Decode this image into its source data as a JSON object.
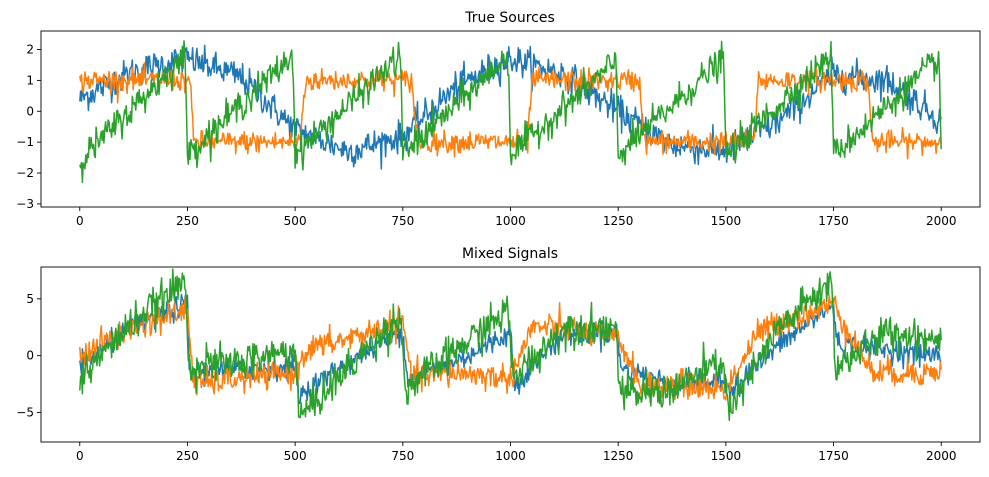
{
  "chart_data": [
    {
      "type": "line",
      "title": "True Sources",
      "xlabel": "",
      "ylabel": "",
      "xlim": [
        -90,
        2090
      ],
      "ylim": [
        -3.1,
        2.6
      ],
      "xticks": [
        0,
        250,
        500,
        750,
        1000,
        1250,
        1500,
        1750,
        2000
      ],
      "yticks": [
        -3,
        -2,
        -1,
        0,
        1,
        2
      ],
      "grid": false,
      "series": [
        {
          "color": "#1f77b4",
          "shape": "sine",
          "x": [
            0,
            125,
            250,
            375,
            500,
            625,
            750,
            875,
            1000,
            1125,
            1250,
            1375,
            1500,
            1625,
            1750,
            1875,
            2000
          ],
          "y": [
            0.4,
            1.3,
            1.7,
            1.1,
            -0.6,
            -1.3,
            -0.8,
            0.8,
            1.7,
            1.2,
            0.0,
            -1.1,
            -1.3,
            -0.3,
            1.2,
            1.0,
            -0.3
          ],
          "noise": 0.25
        },
        {
          "color": "#ff7f0e",
          "shape": "square",
          "x": [
            0,
            10,
            255,
            265,
            510,
            525,
            770,
            785,
            1040,
            1050,
            1300,
            1310,
            1565,
            1575,
            1830,
            1840,
            2000
          ],
          "y": [
            0.9,
            1.0,
            1.0,
            -1.0,
            -1.0,
            1.0,
            1.0,
            -1.0,
            -1.0,
            1.0,
            1.0,
            -1.0,
            -1.0,
            1.0,
            1.0,
            -1.0,
            -1.0
          ],
          "noise": 0.18
        },
        {
          "color": "#2ca02c",
          "shape": "sawtooth",
          "x": [
            0,
            245,
            250,
            495,
            500,
            745,
            750,
            995,
            1000,
            1245,
            1250,
            1495,
            1500,
            1745,
            1750,
            1995,
            2000
          ],
          "y": [
            -1.6,
            1.8,
            -1.4,
            1.8,
            -1.4,
            1.8,
            -1.4,
            1.8,
            -1.4,
            1.6,
            -1.4,
            1.7,
            -1.4,
            1.8,
            -1.4,
            1.7,
            -1.4
          ],
          "noise": 0.25
        }
      ]
    },
    {
      "type": "line",
      "title": "Mixed Signals",
      "xlabel": "",
      "ylabel": "",
      "xlim": [
        -90,
        2090
      ],
      "ylim": [
        -7.6,
        7.8
      ],
      "xticks": [
        0,
        250,
        500,
        750,
        1000,
        1250,
        1500,
        1750,
        2000
      ],
      "yticks": [
        -5,
        0,
        5
      ],
      "grid": false,
      "series": [
        {
          "color": "#1f77b4",
          "shape": "mixed",
          "x": [
            0,
            125,
            250,
            255,
            375,
            500,
            510,
            625,
            750,
            760,
            875,
            1000,
            1010,
            1125,
            1250,
            1255,
            1375,
            1500,
            1510,
            1625,
            1750,
            1760,
            1875,
            2000
          ],
          "y": [
            -1.0,
            2.5,
            4.6,
            -1.5,
            -1.2,
            -1.0,
            -3.5,
            -0.5,
            2.2,
            -2.0,
            -0.5,
            2.0,
            -2.5,
            2.0,
            2.0,
            -1.0,
            -2.5,
            -2.2,
            -3.0,
            1.0,
            4.5,
            1.0,
            0.5,
            0.0
          ],
          "noise": 0.5
        },
        {
          "color": "#ff7f0e",
          "shape": "mixed",
          "x": [
            0,
            125,
            250,
            265,
            375,
            500,
            525,
            625,
            750,
            770,
            875,
            1000,
            1050,
            1125,
            1250,
            1310,
            1375,
            1500,
            1575,
            1625,
            1750,
            1840,
            1875,
            2000
          ],
          "y": [
            0.0,
            2.5,
            4.0,
            -2.5,
            -2.0,
            -1.5,
            0.5,
            1.5,
            3.0,
            -2.0,
            -1.5,
            -2.0,
            2.5,
            2.5,
            1.5,
            -3.0,
            -2.5,
            -3.0,
            2.0,
            3.0,
            4.5,
            -1.5,
            -1.5,
            -1.5
          ],
          "noise": 0.6
        },
        {
          "color": "#2ca02c",
          "shape": "mixed",
          "x": [
            0,
            125,
            245,
            255,
            375,
            500,
            510,
            625,
            745,
            755,
            875,
            995,
            1005,
            1125,
            1245,
            1255,
            1375,
            1495,
            1505,
            1625,
            1745,
            1755,
            1875,
            2000
          ],
          "y": [
            -2.0,
            3.0,
            6.5,
            -1.0,
            -0.5,
            0.5,
            -5.5,
            -1.0,
            3.5,
            -3.0,
            0.5,
            4.0,
            -2.0,
            2.5,
            2.5,
            -3.5,
            -3.0,
            -0.5,
            -5.0,
            2.5,
            6.5,
            -1.0,
            2.0,
            1.5
          ],
          "noise": 0.8
        }
      ]
    }
  ]
}
